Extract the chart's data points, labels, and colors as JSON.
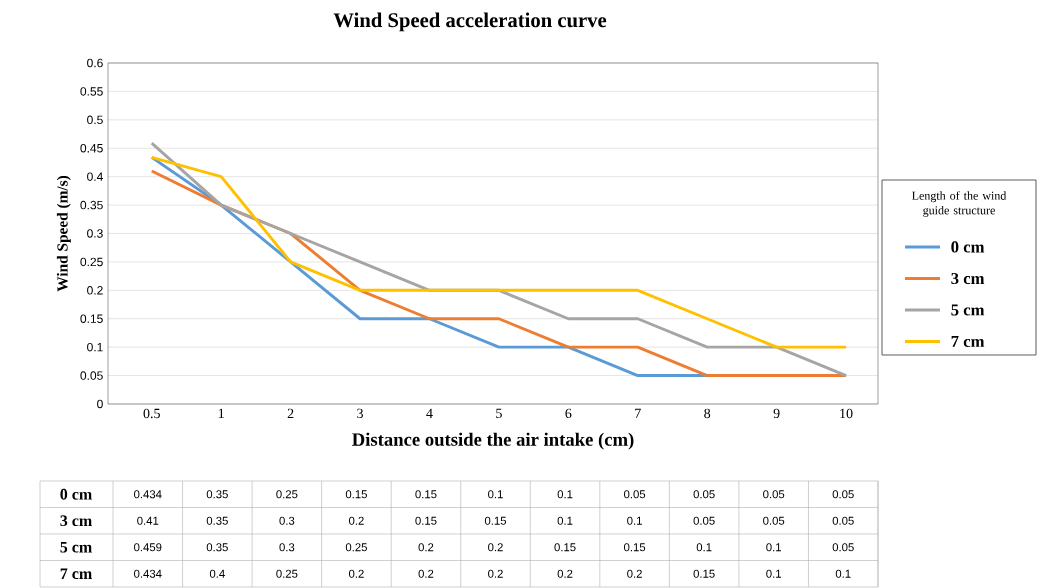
{
  "chart_data": {
    "type": "line",
    "title": "Wind Speed acceleration curve",
    "xlabel": "Distance outside the air intake (cm)",
    "ylabel": "Wind Speed (m/s)",
    "legend_title": "Length of the wind guide structure",
    "categories": [
      "0.5",
      "1",
      "2",
      "3",
      "4",
      "5",
      "6",
      "7",
      "8",
      "9",
      "10"
    ],
    "series": [
      {
        "name": "0 cm",
        "color": "#5b9bd5",
        "values": [
          0.434,
          0.35,
          0.25,
          0.15,
          0.15,
          0.1,
          0.1,
          0.05,
          0.05,
          0.05,
          0.05
        ]
      },
      {
        "name": "3 cm",
        "color": "#ed7d31",
        "values": [
          0.41,
          0.35,
          0.3,
          0.2,
          0.15,
          0.15,
          0.1,
          0.1,
          0.05,
          0.05,
          0.05
        ]
      },
      {
        "name": "5 cm",
        "color": "#a5a5a5",
        "values": [
          0.459,
          0.35,
          0.3,
          0.25,
          0.2,
          0.2,
          0.15,
          0.15,
          0.1,
          0.1,
          0.05
        ]
      },
      {
        "name": "7 cm",
        "color": "#ffc000",
        "values": [
          0.434,
          0.4,
          0.25,
          0.2,
          0.2,
          0.2,
          0.2,
          0.2,
          0.15,
          0.1,
          0.1
        ]
      }
    ],
    "ylim": [
      0,
      0.6
    ],
    "yticks": [
      0,
      0.05,
      0.1,
      0.15,
      0.2,
      0.25,
      0.3,
      0.35,
      0.4,
      0.45,
      0.5,
      0.55,
      0.6
    ],
    "grid": "y",
    "legend": "right",
    "data_labels": true
  }
}
